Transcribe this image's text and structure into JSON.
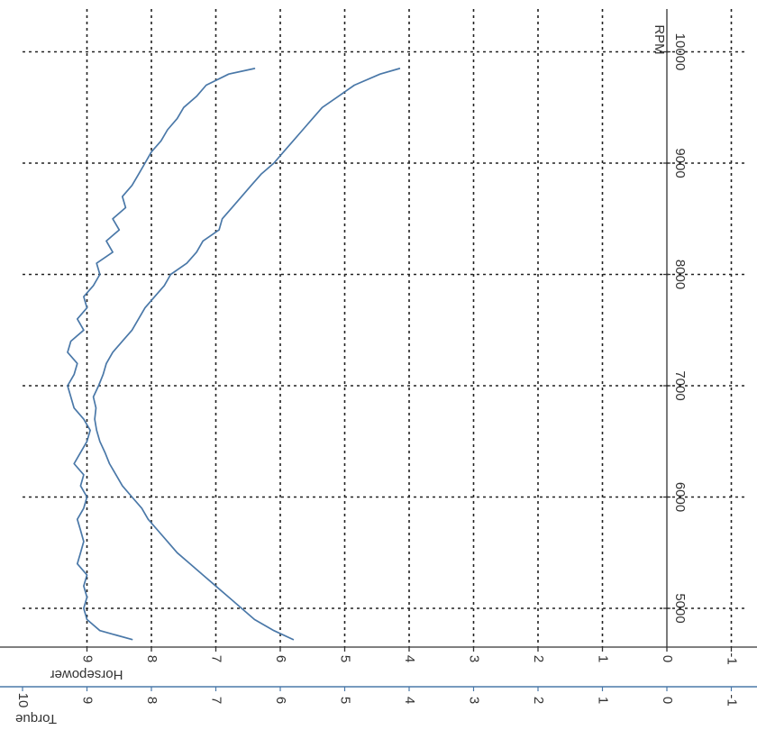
{
  "chart_data": {
    "type": "line",
    "orientation": "rotated-90",
    "x_axis": {
      "label": "RPM",
      "range": [
        4700,
        10200
      ],
      "ticks": [
        5000,
        6000,
        7000,
        8000,
        9000,
        10000
      ],
      "tick_labels": [
        "5000",
        "6000",
        "7000",
        "8000",
        "9000",
        "10000"
      ]
    },
    "y_axes": [
      {
        "name": "Horsepower",
        "range": [
          -1.5,
          10
        ],
        "ticks": [
          -1,
          0,
          1,
          2,
          3,
          4,
          5,
          6,
          7,
          8,
          9
        ],
        "tick_labels": [
          "-1",
          "0",
          "1",
          "2",
          "3",
          "4",
          "5",
          "6",
          "7",
          "8",
          "9"
        ]
      },
      {
        "name": "Torque",
        "range": [
          -1.5,
          10
        ],
        "ticks": [
          -1,
          0,
          1,
          2,
          3,
          4,
          5,
          6,
          7,
          8,
          9,
          10
        ],
        "tick_labels": [
          "-1",
          "0",
          "1",
          "2",
          "3",
          "4",
          "5",
          "6",
          "7",
          "8",
          "9",
          "10"
        ]
      }
    ],
    "grid": true,
    "series": [
      {
        "role": "torque",
        "color": "#4a78a8",
        "points": [
          [
            4720,
            8.3
          ],
          [
            4800,
            8.8
          ],
          [
            4900,
            9.0
          ],
          [
            5000,
            9.05
          ],
          [
            5100,
            9.0
          ],
          [
            5200,
            9.05
          ],
          [
            5300,
            9.0
          ],
          [
            5400,
            9.15
          ],
          [
            5500,
            9.1
          ],
          [
            5600,
            9.05
          ],
          [
            5700,
            9.1
          ],
          [
            5800,
            9.15
          ],
          [
            5900,
            9.05
          ],
          [
            6000,
            9.0
          ],
          [
            6100,
            9.1
          ],
          [
            6200,
            9.05
          ],
          [
            6300,
            9.2
          ],
          [
            6400,
            9.1
          ],
          [
            6500,
            9.0
          ],
          [
            6600,
            8.95
          ],
          [
            6700,
            9.05
          ],
          [
            6800,
            9.2
          ],
          [
            6900,
            9.25
          ],
          [
            7000,
            9.3
          ],
          [
            7100,
            9.2
          ],
          [
            7200,
            9.15
          ],
          [
            7300,
            9.3
          ],
          [
            7400,
            9.25
          ],
          [
            7500,
            9.05
          ],
          [
            7600,
            9.15
          ],
          [
            7700,
            9.0
          ],
          [
            7800,
            9.05
          ],
          [
            7900,
            8.9
          ],
          [
            8000,
            8.8
          ],
          [
            8100,
            8.85
          ],
          [
            8200,
            8.6
          ],
          [
            8300,
            8.7
          ],
          [
            8400,
            8.5
          ],
          [
            8500,
            8.6
          ],
          [
            8600,
            8.4
          ],
          [
            8700,
            8.45
          ],
          [
            8800,
            8.3
          ],
          [
            8900,
            8.2
          ],
          [
            9000,
            8.1
          ],
          [
            9100,
            8.0
          ],
          [
            9200,
            7.85
          ],
          [
            9300,
            7.75
          ],
          [
            9400,
            7.6
          ],
          [
            9500,
            7.5
          ],
          [
            9600,
            7.3
          ],
          [
            9700,
            7.15
          ],
          [
            9800,
            6.8
          ],
          [
            9850,
            6.4
          ]
        ]
      },
      {
        "role": "horsepower",
        "color": "#4a78a8",
        "points": [
          [
            4720,
            5.8
          ],
          [
            4800,
            6.1
          ],
          [
            4900,
            6.4
          ],
          [
            5000,
            6.6
          ],
          [
            5100,
            6.8
          ],
          [
            5200,
            7.0
          ],
          [
            5300,
            7.2
          ],
          [
            5400,
            7.4
          ],
          [
            5500,
            7.6
          ],
          [
            5600,
            7.75
          ],
          [
            5700,
            7.9
          ],
          [
            5800,
            8.05
          ],
          [
            5900,
            8.15
          ],
          [
            6000,
            8.3
          ],
          [
            6100,
            8.45
          ],
          [
            6200,
            8.55
          ],
          [
            6300,
            8.65
          ],
          [
            6400,
            8.72
          ],
          [
            6500,
            8.8
          ],
          [
            6600,
            8.85
          ],
          [
            6700,
            8.88
          ],
          [
            6800,
            8.86
          ],
          [
            6900,
            8.9
          ],
          [
            7000,
            8.82
          ],
          [
            7100,
            8.75
          ],
          [
            7200,
            8.7
          ],
          [
            7300,
            8.6
          ],
          [
            7400,
            8.45
          ],
          [
            7500,
            8.3
          ],
          [
            7600,
            8.2
          ],
          [
            7700,
            8.1
          ],
          [
            7800,
            7.95
          ],
          [
            7900,
            7.8
          ],
          [
            8000,
            7.7
          ],
          [
            8100,
            7.45
          ],
          [
            8200,
            7.3
          ],
          [
            8300,
            7.2
          ],
          [
            8400,
            6.95
          ],
          [
            8500,
            6.9
          ],
          [
            8600,
            6.75
          ],
          [
            8700,
            6.6
          ],
          [
            8800,
            6.45
          ],
          [
            8900,
            6.3
          ],
          [
            9000,
            6.1
          ],
          [
            9100,
            5.95
          ],
          [
            9200,
            5.8
          ],
          [
            9300,
            5.65
          ],
          [
            9400,
            5.5
          ],
          [
            9500,
            5.35
          ],
          [
            9600,
            5.1
          ],
          [
            9700,
            4.85
          ],
          [
            9800,
            4.45
          ],
          [
            9850,
            4.15
          ]
        ]
      }
    ]
  }
}
